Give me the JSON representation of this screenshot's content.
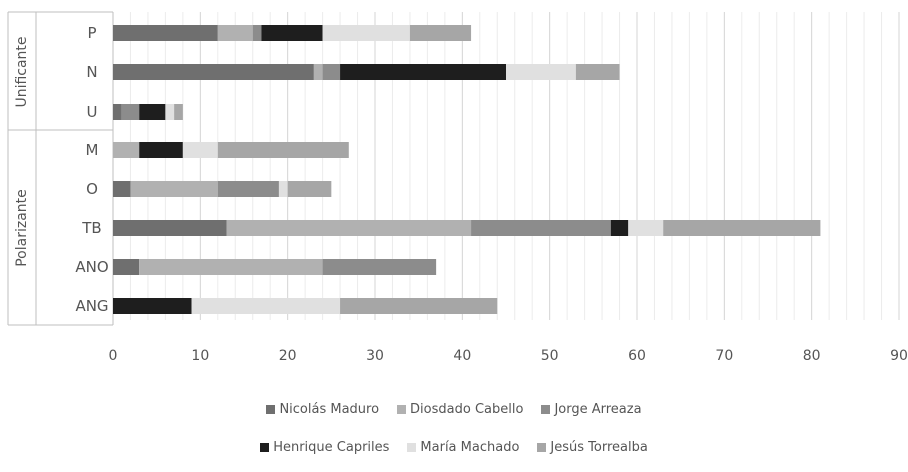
{
  "chart_data": {
    "type": "bar",
    "orientation": "horizontal",
    "stacked": true,
    "categories": [
      "P",
      "N",
      "U",
      "M",
      "O",
      "TB",
      "ANO",
      "ANG"
    ],
    "groups": [
      {
        "label": "Unificante",
        "categories": [
          "P",
          "N",
          "U"
        ]
      },
      {
        "label": "Polarizante",
        "categories": [
          "M",
          "O",
          "TB",
          "ANO",
          "ANG"
        ]
      }
    ],
    "series": [
      {
        "name": "Nicolás Maduro",
        "color": "#6f6f6f",
        "values": [
          12,
          23,
          1,
          0,
          2,
          13,
          3,
          0
        ]
      },
      {
        "name": "Diosdado Cabello",
        "color": "#b1b1b1",
        "values": [
          4,
          1,
          0,
          3,
          10,
          28,
          21,
          0
        ]
      },
      {
        "name": "Jorge Arreaza",
        "color": "#8c8c8c",
        "values": [
          1,
          2,
          2,
          0,
          7,
          16,
          13,
          0
        ]
      },
      {
        "name": "Henrique Capriles",
        "color": "#1e1e1e",
        "values": [
          7,
          19,
          3,
          5,
          0,
          2,
          0,
          9
        ]
      },
      {
        "name": "María Machado",
        "color": "#e0e0e0",
        "values": [
          10,
          8,
          1,
          4,
          1,
          4,
          0,
          17
        ]
      },
      {
        "name": "Jesús Torrealba",
        "color": "#a6a6a6",
        "values": [
          7,
          5,
          1,
          15,
          5,
          18,
          0,
          18
        ]
      }
    ],
    "xlim": [
      0,
      90
    ],
    "xticks": [
      "0",
      "10",
      "20",
      "30",
      "40",
      "50",
      "60",
      "70",
      "80",
      "90"
    ],
    "grid": "vertical",
    "legend_position": "bottom"
  }
}
